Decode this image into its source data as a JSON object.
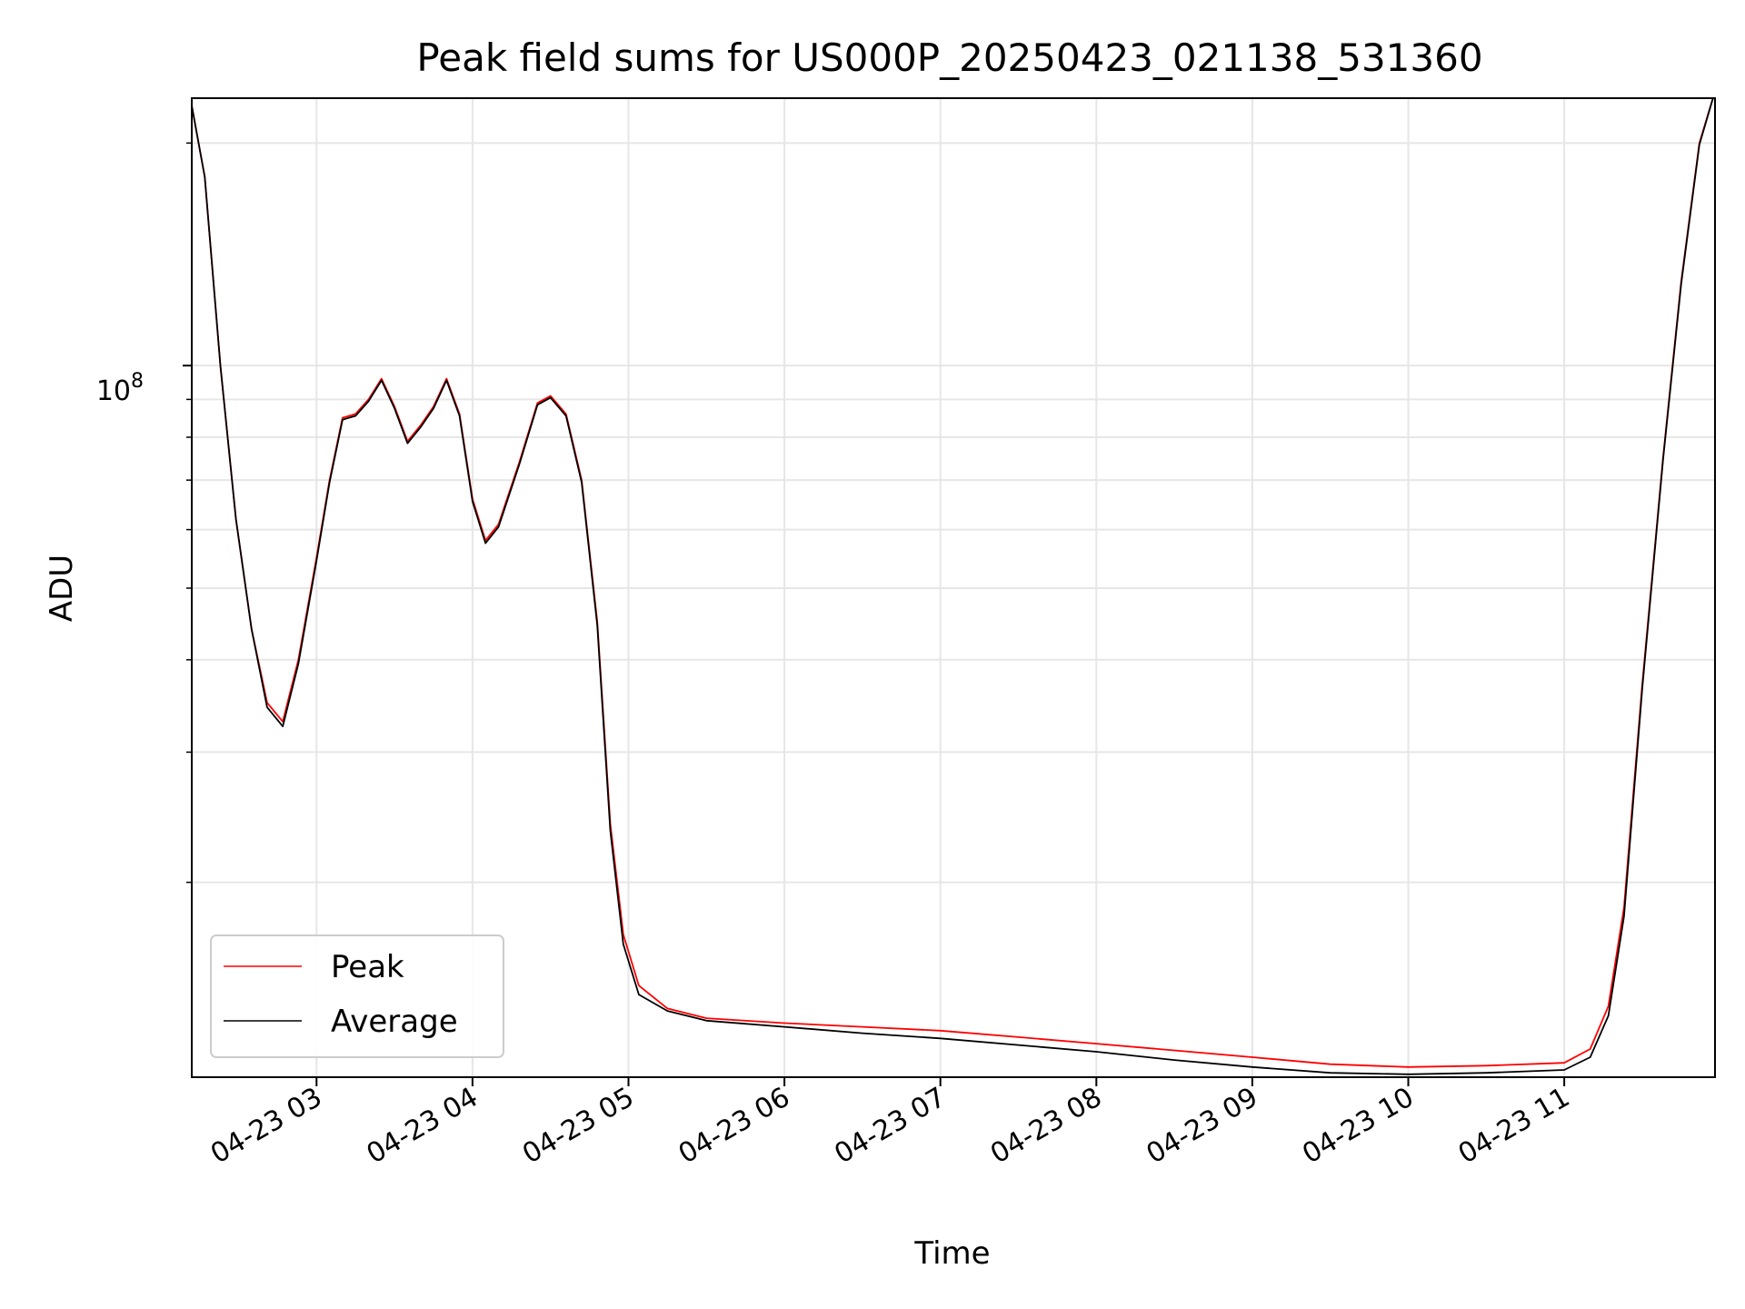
{
  "chart_data": {
    "type": "line",
    "title": "Peak field sums for US000P_20250423_021138_531360",
    "xlabel": "Time",
    "ylabel": "ADU",
    "y_scale": "log",
    "x_range": [
      "2025-04-23 02:12",
      "2025-04-23 11:58"
    ],
    "ylim": [
      10900000,
      230000000
    ],
    "grid": true,
    "legend": "lower-left",
    "x_ticks": [
      "04-23 03",
      "04-23 04",
      "04-23 05",
      "04-23 06",
      "04-23 07",
      "04-23 08",
      "04-23 09",
      "04-23 10",
      "04-23 11"
    ],
    "x_tick_times": [
      "2025-04-23 03:00",
      "2025-04-23 04:00",
      "2025-04-23 05:00",
      "2025-04-23 06:00",
      "2025-04-23 07:00",
      "2025-04-23 08:00",
      "2025-04-23 09:00",
      "2025-04-23 10:00",
      "2025-04-23 11:00"
    ],
    "y_major_tick_label": {
      "base": "10",
      "exponent": "8",
      "value": 100000000
    },
    "y_minor_ticks": [
      20000000,
      30000000,
      40000000,
      50000000,
      60000000,
      70000000,
      80000000,
      90000000,
      200000000
    ],
    "series": [
      {
        "name": "Peak",
        "color": "#ff0000",
        "points": [
          [
            "2025-04-23 02:11",
            235000000
          ],
          [
            "2025-04-23 02:17",
            180000000
          ],
          [
            "2025-04-23 02:23",
            100000000
          ],
          [
            "2025-04-23 02:29",
            62000000
          ],
          [
            "2025-04-23 02:35",
            44000000
          ],
          [
            "2025-04-23 02:41",
            35000000
          ],
          [
            "2025-04-23 02:47",
            33000000
          ],
          [
            "2025-04-23 02:53",
            40000000
          ],
          [
            "2025-04-23 03:00",
            55000000
          ],
          [
            "2025-04-23 03:05",
            70000000
          ],
          [
            "2025-04-23 03:10",
            85000000
          ],
          [
            "2025-04-23 03:15",
            86000000
          ],
          [
            "2025-04-23 03:20",
            90000000
          ],
          [
            "2025-04-23 03:25",
            96000000
          ],
          [
            "2025-04-23 03:30",
            88000000
          ],
          [
            "2025-04-23 03:35",
            79000000
          ],
          [
            "2025-04-23 03:40",
            83000000
          ],
          [
            "2025-04-23 03:45",
            88000000
          ],
          [
            "2025-04-23 03:50",
            96000000
          ],
          [
            "2025-04-23 03:55",
            86000000
          ],
          [
            "2025-04-23 04:00",
            66000000
          ],
          [
            "2025-04-23 04:05",
            58000000
          ],
          [
            "2025-04-23 04:10",
            61000000
          ],
          [
            "2025-04-23 04:18",
            74000000
          ],
          [
            "2025-04-23 04:25",
            89000000
          ],
          [
            "2025-04-23 04:30",
            91000000
          ],
          [
            "2025-04-23 04:36",
            86000000
          ],
          [
            "2025-04-23 04:42",
            70000000
          ],
          [
            "2025-04-23 04:48",
            45000000
          ],
          [
            "2025-04-23 04:53",
            24000000
          ],
          [
            "2025-04-23 04:58",
            17000000
          ],
          [
            "2025-04-23 05:04",
            14500000
          ],
          [
            "2025-04-23 05:15",
            13500000
          ],
          [
            "2025-04-23 05:30",
            13100000
          ],
          [
            "2025-04-23 06:00",
            12900000
          ],
          [
            "2025-04-23 06:30",
            12750000
          ],
          [
            "2025-04-23 07:00",
            12600000
          ],
          [
            "2025-04-23 07:30",
            12350000
          ],
          [
            "2025-04-23 08:00",
            12100000
          ],
          [
            "2025-04-23 08:30",
            11850000
          ],
          [
            "2025-04-23 09:00",
            11600000
          ],
          [
            "2025-04-23 09:30",
            11350000
          ],
          [
            "2025-04-23 10:00",
            11250000
          ],
          [
            "2025-04-23 10:30",
            11300000
          ],
          [
            "2025-04-23 11:00",
            11400000
          ],
          [
            "2025-04-23 11:10",
            11900000
          ],
          [
            "2025-04-23 11:17",
            13600000
          ],
          [
            "2025-04-23 11:23",
            18500000
          ],
          [
            "2025-04-23 11:30",
            37000000
          ],
          [
            "2025-04-23 11:38",
            75000000
          ],
          [
            "2025-04-23 11:45",
            130000000
          ],
          [
            "2025-04-23 11:52",
            200000000
          ],
          [
            "2025-04-23 11:58",
            235000000
          ]
        ]
      },
      {
        "name": "Average",
        "color": "#000000",
        "points": [
          [
            "2025-04-23 02:11",
            235000000
          ],
          [
            "2025-04-23 02:17",
            180000000
          ],
          [
            "2025-04-23 02:23",
            100000000
          ],
          [
            "2025-04-23 02:29",
            62000000
          ],
          [
            "2025-04-23 02:35",
            44000000
          ],
          [
            "2025-04-23 02:41",
            34500000
          ],
          [
            "2025-04-23 02:47",
            32500000
          ],
          [
            "2025-04-23 02:53",
            39500000
          ],
          [
            "2025-04-23 03:00",
            54500000
          ],
          [
            "2025-04-23 03:05",
            69500000
          ],
          [
            "2025-04-23 03:10",
            84500000
          ],
          [
            "2025-04-23 03:15",
            85500000
          ],
          [
            "2025-04-23 03:20",
            89500000
          ],
          [
            "2025-04-23 03:25",
            95500000
          ],
          [
            "2025-04-23 03:30",
            87500000
          ],
          [
            "2025-04-23 03:35",
            78500000
          ],
          [
            "2025-04-23 03:40",
            82500000
          ],
          [
            "2025-04-23 03:45",
            87500000
          ],
          [
            "2025-04-23 03:50",
            95500000
          ],
          [
            "2025-04-23 03:55",
            85500000
          ],
          [
            "2025-04-23 04:00",
            65500000
          ],
          [
            "2025-04-23 04:05",
            57500000
          ],
          [
            "2025-04-23 04:10",
            60500000
          ],
          [
            "2025-04-23 04:18",
            73500000
          ],
          [
            "2025-04-23 04:25",
            88500000
          ],
          [
            "2025-04-23 04:30",
            90500000
          ],
          [
            "2025-04-23 04:36",
            85500000
          ],
          [
            "2025-04-23 04:42",
            69500000
          ],
          [
            "2025-04-23 04:48",
            44500000
          ],
          [
            "2025-04-23 04:53",
            23500000
          ],
          [
            "2025-04-23 04:58",
            16500000
          ],
          [
            "2025-04-23 05:04",
            14100000
          ],
          [
            "2025-04-23 05:15",
            13400000
          ],
          [
            "2025-04-23 05:30",
            13000000
          ],
          [
            "2025-04-23 06:00",
            12750000
          ],
          [
            "2025-04-23 06:30",
            12500000
          ],
          [
            "2025-04-23 07:00",
            12300000
          ],
          [
            "2025-04-23 07:30",
            12050000
          ],
          [
            "2025-04-23 08:00",
            11800000
          ],
          [
            "2025-04-23 08:30",
            11500000
          ],
          [
            "2025-04-23 09:00",
            11250000
          ],
          [
            "2025-04-23 09:30",
            11050000
          ],
          [
            "2025-04-23 10:00",
            11000000
          ],
          [
            "2025-04-23 10:30",
            11050000
          ],
          [
            "2025-04-23 11:00",
            11150000
          ],
          [
            "2025-04-23 11:10",
            11600000
          ],
          [
            "2025-04-23 11:17",
            13200000
          ],
          [
            "2025-04-23 11:23",
            18000000
          ],
          [
            "2025-04-23 11:30",
            36500000
          ],
          [
            "2025-04-23 11:38",
            74500000
          ],
          [
            "2025-04-23 11:45",
            129000000
          ],
          [
            "2025-04-23 11:52",
            199000000
          ],
          [
            "2025-04-23 11:58",
            235000000
          ]
        ]
      }
    ]
  }
}
